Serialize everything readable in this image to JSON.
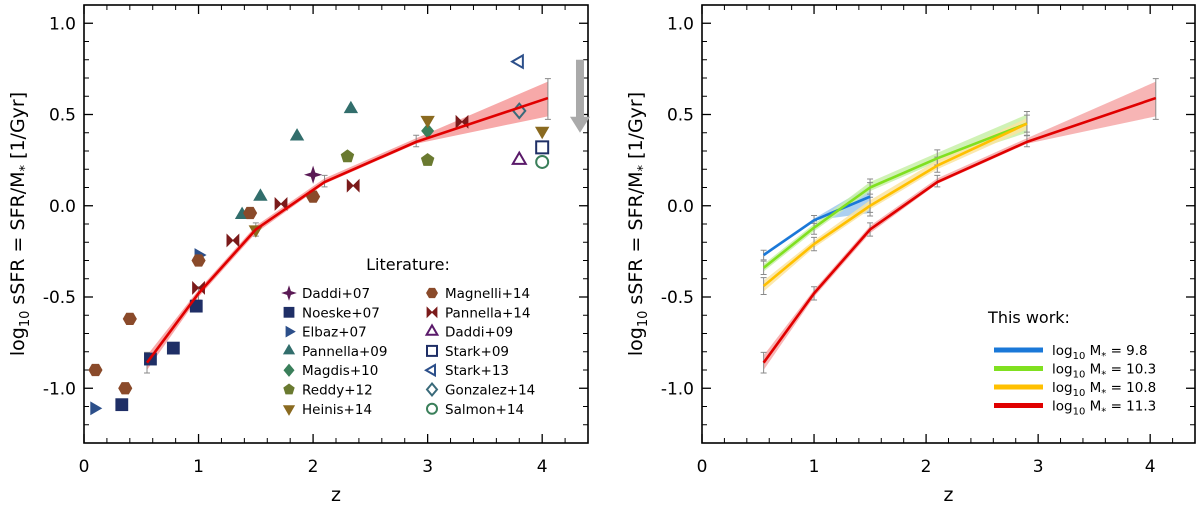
{
  "chart_data": [
    {
      "type": "scatter",
      "panel": "left",
      "xlabel": "z",
      "ylabel": "log10 sSFR = SFR/M* [1/Gyr]",
      "xlim": [
        0,
        4.4
      ],
      "ylim": [
        -1.3,
        1.1
      ],
      "x_ticks": [
        "0",
        "1",
        "2",
        "3",
        "4"
      ],
      "y_ticks": [
        "-1.0",
        "-0.5",
        "0.0",
        "0.5",
        "1.0"
      ],
      "legend_title": "Literature:",
      "legend_placement": "lower-right",
      "fit_band": {
        "color": "#e00000",
        "x": [
          0.55,
          1.0,
          1.5,
          2.1,
          2.9,
          4.05
        ],
        "y": [
          -0.86,
          -0.48,
          -0.13,
          0.13,
          0.35,
          0.59
        ],
        "lo": [
          -0.9,
          -0.5,
          -0.15,
          0.12,
          0.34,
          0.49
        ],
        "hi": [
          -0.82,
          -0.46,
          -0.11,
          0.15,
          0.37,
          0.68
        ]
      },
      "upper_limit_arrow": {
        "x": 4.33,
        "y_top": 0.8,
        "y_bottom": 0.4,
        "color": "#aaaaaa"
      },
      "series": [
        {
          "name": "Daddi+07",
          "marker": "star",
          "filled": true,
          "color": "#5a1a55",
          "points": [
            [
              2.0,
              0.17
            ]
          ]
        },
        {
          "name": "Noeske+07",
          "marker": "square",
          "filled": true,
          "color": "#1f2f66",
          "points": [
            [
              0.33,
              -1.09
            ],
            [
              0.58,
              -0.84
            ],
            [
              0.78,
              -0.78
            ],
            [
              0.98,
              -0.55
            ]
          ]
        },
        {
          "name": "Elbaz+07",
          "marker": "tri-right",
          "filled": true,
          "color": "#2c4f8a",
          "points": [
            [
              0.09,
              -1.11
            ],
            [
              1.0,
              -0.27
            ]
          ]
        },
        {
          "name": "Pannella+09",
          "marker": "tri-up",
          "filled": true,
          "color": "#326e6c",
          "points": [
            [
              1.38,
              -0.05
            ],
            [
              1.54,
              0.05
            ],
            [
              1.86,
              0.38
            ],
            [
              2.33,
              0.53
            ]
          ]
        },
        {
          "name": "Magdis+10",
          "marker": "diamond",
          "filled": true,
          "color": "#3a7f5a",
          "points": [
            [
              3.0,
              0.41
            ]
          ]
        },
        {
          "name": "Reddy+12",
          "marker": "pentagon",
          "filled": true,
          "color": "#6a7a30",
          "points": [
            [
              2.3,
              0.27
            ],
            [
              3.0,
              0.25
            ]
          ]
        },
        {
          "name": "Heinis+14",
          "marker": "tri-down",
          "filled": true,
          "color": "#8a6a20",
          "points": [
            [
              1.5,
              -0.13
            ],
            [
              3.0,
              0.47
            ],
            [
              4.0,
              0.41
            ]
          ]
        },
        {
          "name": "Magnelli+14",
          "marker": "hexagon",
          "filled": true,
          "color": "#8a4a2a",
          "points": [
            [
              0.1,
              -0.9
            ],
            [
              0.36,
              -1.0
            ],
            [
              0.4,
              -0.62
            ],
            [
              1.0,
              -0.3
            ],
            [
              1.45,
              -0.04
            ],
            [
              2.0,
              0.05
            ]
          ]
        },
        {
          "name": "Pannella+14",
          "marker": "bowtie",
          "filled": true,
          "color": "#7a1a1a",
          "points": [
            [
              1.3,
              -0.19
            ],
            [
              1.0,
              -0.45
            ],
            [
              1.72,
              0.01
            ],
            [
              2.35,
              0.11
            ],
            [
              3.3,
              0.46
            ]
          ]
        },
        {
          "name": "Daddi+09",
          "marker": "tri-up",
          "filled": false,
          "color": "#5a1a6a",
          "points": [
            [
              3.8,
              0.25
            ]
          ]
        },
        {
          "name": "Stark+09",
          "marker": "square",
          "filled": false,
          "color": "#1f2f66",
          "points": [
            [
              4.0,
              0.32
            ]
          ]
        },
        {
          "name": "Stark+13",
          "marker": "tri-left",
          "filled": false,
          "color": "#2c4f8a",
          "points": [
            [
              3.8,
              0.79
            ]
          ]
        },
        {
          "name": "Gonzalez+14",
          "marker": "diamond",
          "filled": false,
          "color": "#3a6a7a",
          "points": [
            [
              3.8,
              0.52
            ]
          ]
        },
        {
          "name": "Salmon+14",
          "marker": "circle",
          "filled": false,
          "color": "#3a7f5a",
          "points": [
            [
              4.0,
              0.24
            ]
          ]
        }
      ]
    },
    {
      "type": "line",
      "panel": "right",
      "xlabel": "z",
      "ylabel": "log10 sSFR = SFR/M* [1/Gyr]",
      "xlim": [
        0,
        4.4
      ],
      "ylim": [
        -1.3,
        1.1
      ],
      "x_ticks": [
        "0",
        "1",
        "2",
        "3",
        "4"
      ],
      "y_ticks": [
        "-1.0",
        "-0.5",
        "0.0",
        "0.5",
        "1.0"
      ],
      "legend_title": "This work:",
      "legend_placement": "lower-right",
      "series": [
        {
          "name": "log10 M* = 9.8",
          "label_prefix": "log",
          "label_sub": "10",
          "label_mid": " M",
          "label_star": "*",
          "label_value": " = 9.8",
          "color": "#1a78d8",
          "band_color": "#9ec8ee",
          "x": [
            0.55,
            1.0,
            1.5
          ],
          "y": [
            -0.27,
            -0.08,
            0.05
          ],
          "lo": [
            -0.28,
            -0.08,
            -0.04
          ],
          "hi": [
            -0.26,
            -0.07,
            0.11
          ]
        },
        {
          "name": "log10 M* = 10.3",
          "label_prefix": "log",
          "label_sub": "10",
          "label_mid": " M",
          "label_star": "*",
          "label_value": " = 10.3",
          "color": "#80e020",
          "band_color": "#c8f0a8",
          "x": [
            0.55,
            1.0,
            1.5,
            2.1,
            2.9
          ],
          "y": [
            -0.34,
            -0.12,
            0.1,
            0.26,
            0.45
          ],
          "lo": [
            -0.36,
            -0.14,
            0.08,
            0.24,
            0.4
          ],
          "hi": [
            -0.32,
            -0.1,
            0.13,
            0.29,
            0.5
          ]
        },
        {
          "name": "log10 M* = 10.8",
          "label_prefix": "log",
          "label_sub": "10",
          "label_mid": " M",
          "label_star": "*",
          "label_value": " = 10.8",
          "color": "#ffc000",
          "band_color": "#fae4a0",
          "x": [
            0.55,
            1.0,
            1.5,
            2.1,
            2.9
          ],
          "y": [
            -0.44,
            -0.21,
            0.0,
            0.22,
            0.45
          ],
          "lo": [
            -0.47,
            -0.23,
            -0.02,
            0.2,
            0.42
          ],
          "hi": [
            -0.41,
            -0.19,
            0.03,
            0.25,
            0.48
          ]
        },
        {
          "name": "log10 M* = 11.3",
          "label_prefix": "log",
          "label_sub": "10",
          "label_mid": " M",
          "label_star": "*",
          "label_value": " = 11.3",
          "color": "#e00000",
          "band_color": "#f6a8a8",
          "x": [
            0.55,
            1.0,
            1.5,
            2.1,
            2.9,
            4.05
          ],
          "y": [
            -0.86,
            -0.48,
            -0.13,
            0.13,
            0.35,
            0.59
          ],
          "lo": [
            -0.9,
            -0.5,
            -0.15,
            0.12,
            0.34,
            0.49
          ],
          "hi": [
            -0.82,
            -0.46,
            -0.11,
            0.15,
            0.37,
            0.68
          ]
        }
      ]
    }
  ]
}
